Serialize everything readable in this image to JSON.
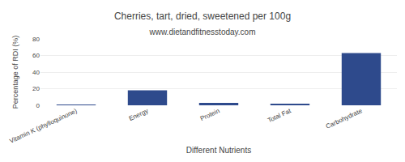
{
  "chart_data": {
    "type": "bar",
    "title": "Cherries, tart, dried, sweetened per 100g",
    "subtitle": "www.dietandfitnesstoday.com",
    "xlabel": "Different Nutrients",
    "ylabel": "Percentage of RDI (%)",
    "categories": [
      "Vitamin K (phylloquinone)",
      "Energy",
      "Protein",
      "Total Fat",
      "Carbohydrate"
    ],
    "values": [
      0.3,
      18,
      3,
      1,
      63
    ],
    "color": "#2e4a8c",
    "ylim": [
      0,
      80
    ],
    "yticks": [
      0,
      20,
      40,
      60,
      80
    ],
    "grid": true
  }
}
